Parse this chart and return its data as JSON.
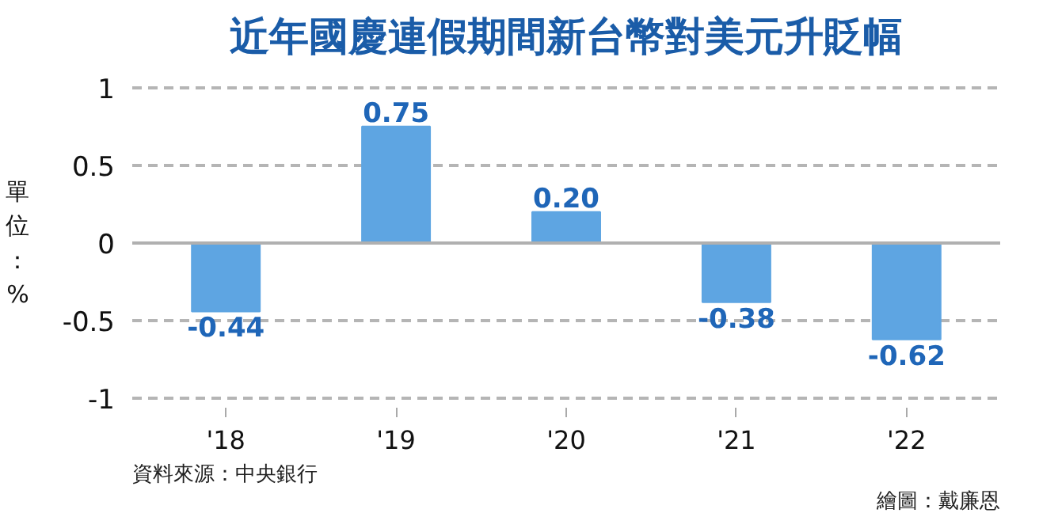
{
  "chart_data": {
    "type": "bar",
    "title": "近年國慶連假期間新台幣對美元升貶幅",
    "ylabel": "單位：%",
    "categories": [
      "'18",
      "'19",
      "'20",
      "'21",
      "'22"
    ],
    "values": [
      -0.44,
      0.75,
      0.2,
      -0.38,
      -0.62
    ],
    "color": "#5ea5e2",
    "value_labels": [
      "-0.44",
      "0.75",
      "0.20",
      "-0.38",
      "-0.62"
    ],
    "ylim": [
      -1,
      1
    ],
    "yticks": [
      -1,
      -0.5,
      0,
      0.5,
      1
    ],
    "grid": "y",
    "annotations": [
      "資料來源：中央銀行",
      "繪圖：戴廉恩"
    ]
  }
}
